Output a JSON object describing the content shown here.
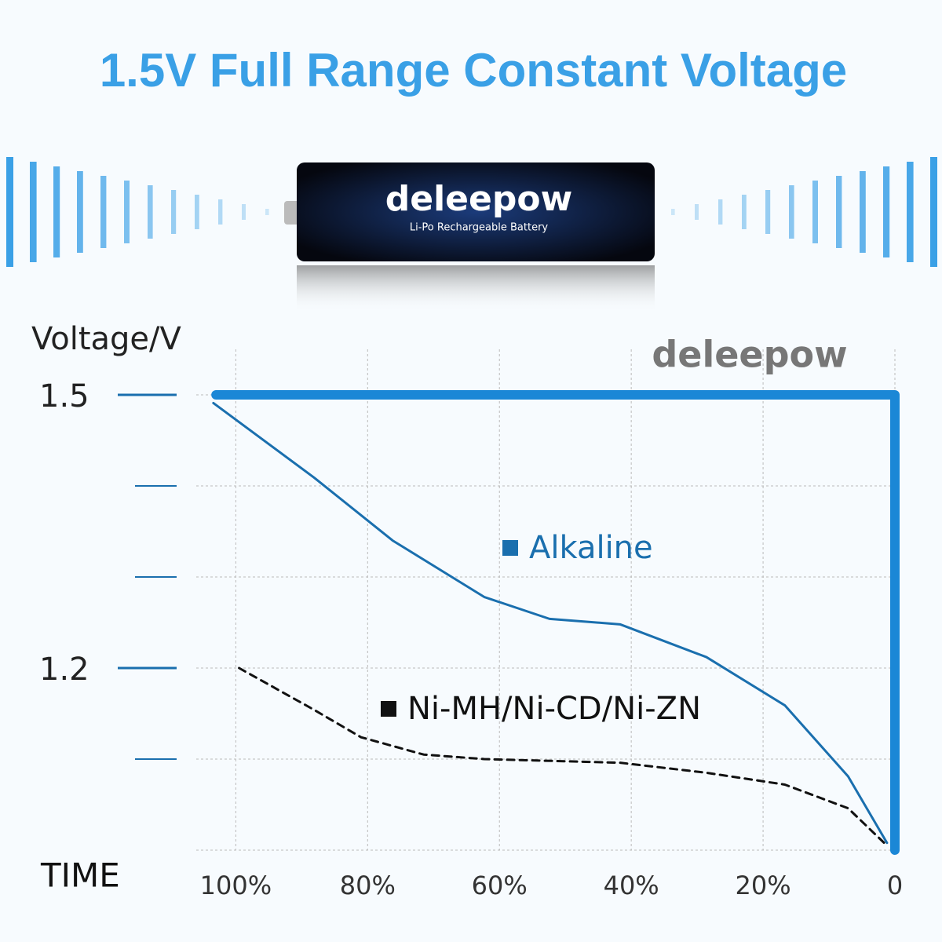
{
  "header": {
    "title": "1.5V Full Range Constant Voltage"
  },
  "battery": {
    "brand": "deleepow",
    "label": "Li-Po Rechargeable Battery"
  },
  "chart_data": {
    "type": "line",
    "brand": "deleepow",
    "y_label": "Voltage/V",
    "x_label": "TIME",
    "xlim": [
      106,
      0
    ],
    "ylim": [
      1.0,
      1.55
    ],
    "xticks": [
      {
        "value": 100,
        "label": "100%"
      },
      {
        "value": 80,
        "label": "80%"
      },
      {
        "value": 60,
        "label": "60%"
      },
      {
        "value": 40,
        "label": "40%"
      },
      {
        "value": 20,
        "label": "20%"
      },
      0
    ],
    "yticks": [
      1.5,
      1.2
    ],
    "minor_yticks": [
      1.4,
      1.3,
      1.1
    ],
    "grid": true,
    "series": [
      {
        "name": "deleepow",
        "color": "#1b87d6",
        "style": "thick",
        "x": [
          103,
          0,
          0
        ],
        "values": [
          1.5,
          1.5,
          1.0
        ]
      },
      {
        "name": "Alkaline",
        "color": "#1a6fae",
        "style": "solid",
        "x": [
          103.4,
          88.1,
          76.2,
          62.3,
          52.4,
          41.7,
          28.6,
          16.7,
          7.1,
          1.2
        ],
        "values": [
          1.491,
          1.409,
          1.34,
          1.278,
          1.254,
          1.248,
          1.212,
          1.159,
          1.081,
          1.008
        ]
      },
      {
        "name": "Ni-MH/Ni-CD/Ni-ZN",
        "color": "#111111",
        "style": "dashed",
        "x": [
          99.5,
          88.1,
          81,
          71.5,
          62.3,
          41.7,
          28.6,
          16.7,
          7.1,
          1.2
        ],
        "values": [
          1.2,
          1.154,
          1.124,
          1.105,
          1.1,
          1.096,
          1.085,
          1.072,
          1.046,
          1.005
        ]
      }
    ]
  }
}
